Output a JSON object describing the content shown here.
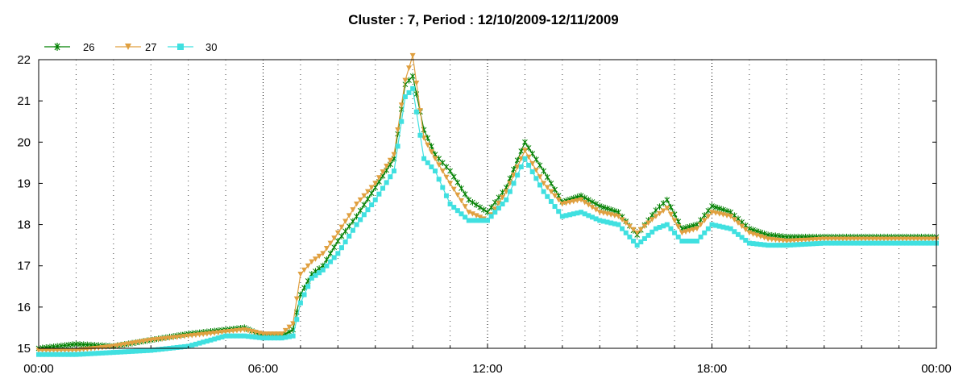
{
  "chart_data": {
    "type": "line",
    "title": "Cluster : 7, Period : 12/10/2009-12/11/2009",
    "xlabel": "",
    "ylabel": "",
    "x_unit": "hours",
    "xlim": [
      0,
      24
    ],
    "ylim": [
      15,
      22
    ],
    "x_ticks": [
      {
        "value": 0,
        "label": "00:00"
      },
      {
        "value": 6,
        "label": "06:00"
      },
      {
        "value": 12,
        "label": "12:00"
      },
      {
        "value": 18,
        "label": "18:00"
      },
      {
        "value": 24,
        "label": "00:00"
      }
    ],
    "y_ticks": [
      15,
      16,
      17,
      18,
      19,
      20,
      21,
      22
    ],
    "grid": "dotted vertical lines every hour",
    "legend_position": "top-left",
    "series": [
      {
        "name": "26",
        "color": "#008000",
        "marker": "star",
        "x": [
          0,
          1,
          2,
          3,
          4,
          5,
          5.5,
          6.0,
          6.5,
          6.8,
          7.0,
          7.3,
          7.6,
          8.0,
          8.5,
          9.0,
          9.5,
          9.8,
          10.0,
          10.3,
          10.6,
          11.0,
          11.5,
          12.0,
          12.5,
          13.0,
          13.5,
          14.0,
          14.5,
          15.0,
          15.5,
          16.0,
          16.5,
          16.8,
          17.2,
          17.6,
          18.0,
          18.5,
          19.0,
          19.5,
          20,
          21,
          22,
          23,
          24
        ],
        "y": [
          15.0,
          15.1,
          15.05,
          15.2,
          15.35,
          15.45,
          15.5,
          15.3,
          15.3,
          15.45,
          16.3,
          16.8,
          17.0,
          17.6,
          18.2,
          18.9,
          19.6,
          21.4,
          21.6,
          20.3,
          19.7,
          19.3,
          18.6,
          18.3,
          18.9,
          20.0,
          19.3,
          18.55,
          18.7,
          18.45,
          18.3,
          17.75,
          18.35,
          18.6,
          17.9,
          18.0,
          18.45,
          18.3,
          17.9,
          17.75,
          17.7,
          17.7,
          17.7,
          17.7,
          17.7
        ]
      },
      {
        "name": "27",
        "color": "#E0A040",
        "marker": "triangle-down",
        "x": [
          0,
          1,
          2,
          3,
          4,
          5,
          5.5,
          6.0,
          6.5,
          6.8,
          7.0,
          7.3,
          7.6,
          8.0,
          8.5,
          9.0,
          9.5,
          9.8,
          10.0,
          10.3,
          10.6,
          11.0,
          11.5,
          12.0,
          12.5,
          13.0,
          13.5,
          14.0,
          14.5,
          15.0,
          15.5,
          16.0,
          16.5,
          16.8,
          17.2,
          17.6,
          18.0,
          18.5,
          19.0,
          19.5,
          20,
          21,
          22,
          23,
          24
        ],
        "y": [
          14.95,
          14.95,
          15.05,
          15.2,
          15.3,
          15.4,
          15.45,
          15.35,
          15.35,
          15.6,
          16.8,
          17.1,
          17.3,
          17.8,
          18.5,
          19.0,
          19.7,
          21.5,
          22.1,
          20.1,
          19.6,
          19.0,
          18.3,
          18.1,
          18.8,
          19.8,
          19.0,
          18.5,
          18.6,
          18.3,
          18.2,
          17.8,
          18.2,
          18.4,
          17.8,
          17.9,
          18.3,
          18.2,
          17.8,
          17.65,
          17.6,
          17.65,
          17.65,
          17.65,
          17.65
        ]
      },
      {
        "name": "30",
        "color": "#40E0E0",
        "marker": "square",
        "x": [
          0,
          1,
          2,
          3,
          4,
          5,
          5.5,
          6.0,
          6.5,
          6.8,
          7.0,
          7.3,
          7.6,
          8.0,
          8.5,
          9.0,
          9.5,
          9.8,
          10.0,
          10.3,
          10.6,
          11.0,
          11.5,
          12.0,
          12.5,
          13.0,
          13.5,
          14.0,
          14.5,
          15.0,
          15.5,
          16.0,
          16.5,
          16.8,
          17.2,
          17.6,
          18.0,
          18.5,
          19.0,
          19.5,
          20,
          21,
          22,
          23,
          24
        ],
        "y": [
          14.85,
          14.85,
          14.9,
          14.95,
          15.05,
          15.3,
          15.3,
          15.25,
          15.25,
          15.3,
          16.1,
          16.7,
          16.9,
          17.3,
          18.0,
          18.6,
          19.3,
          21.1,
          21.3,
          19.6,
          19.3,
          18.5,
          18.1,
          18.1,
          18.6,
          19.6,
          18.8,
          18.2,
          18.3,
          18.1,
          18.0,
          17.5,
          17.9,
          18.0,
          17.6,
          17.6,
          18.0,
          17.9,
          17.55,
          17.5,
          17.5,
          17.55,
          17.55,
          17.55,
          17.55
        ]
      }
    ]
  }
}
